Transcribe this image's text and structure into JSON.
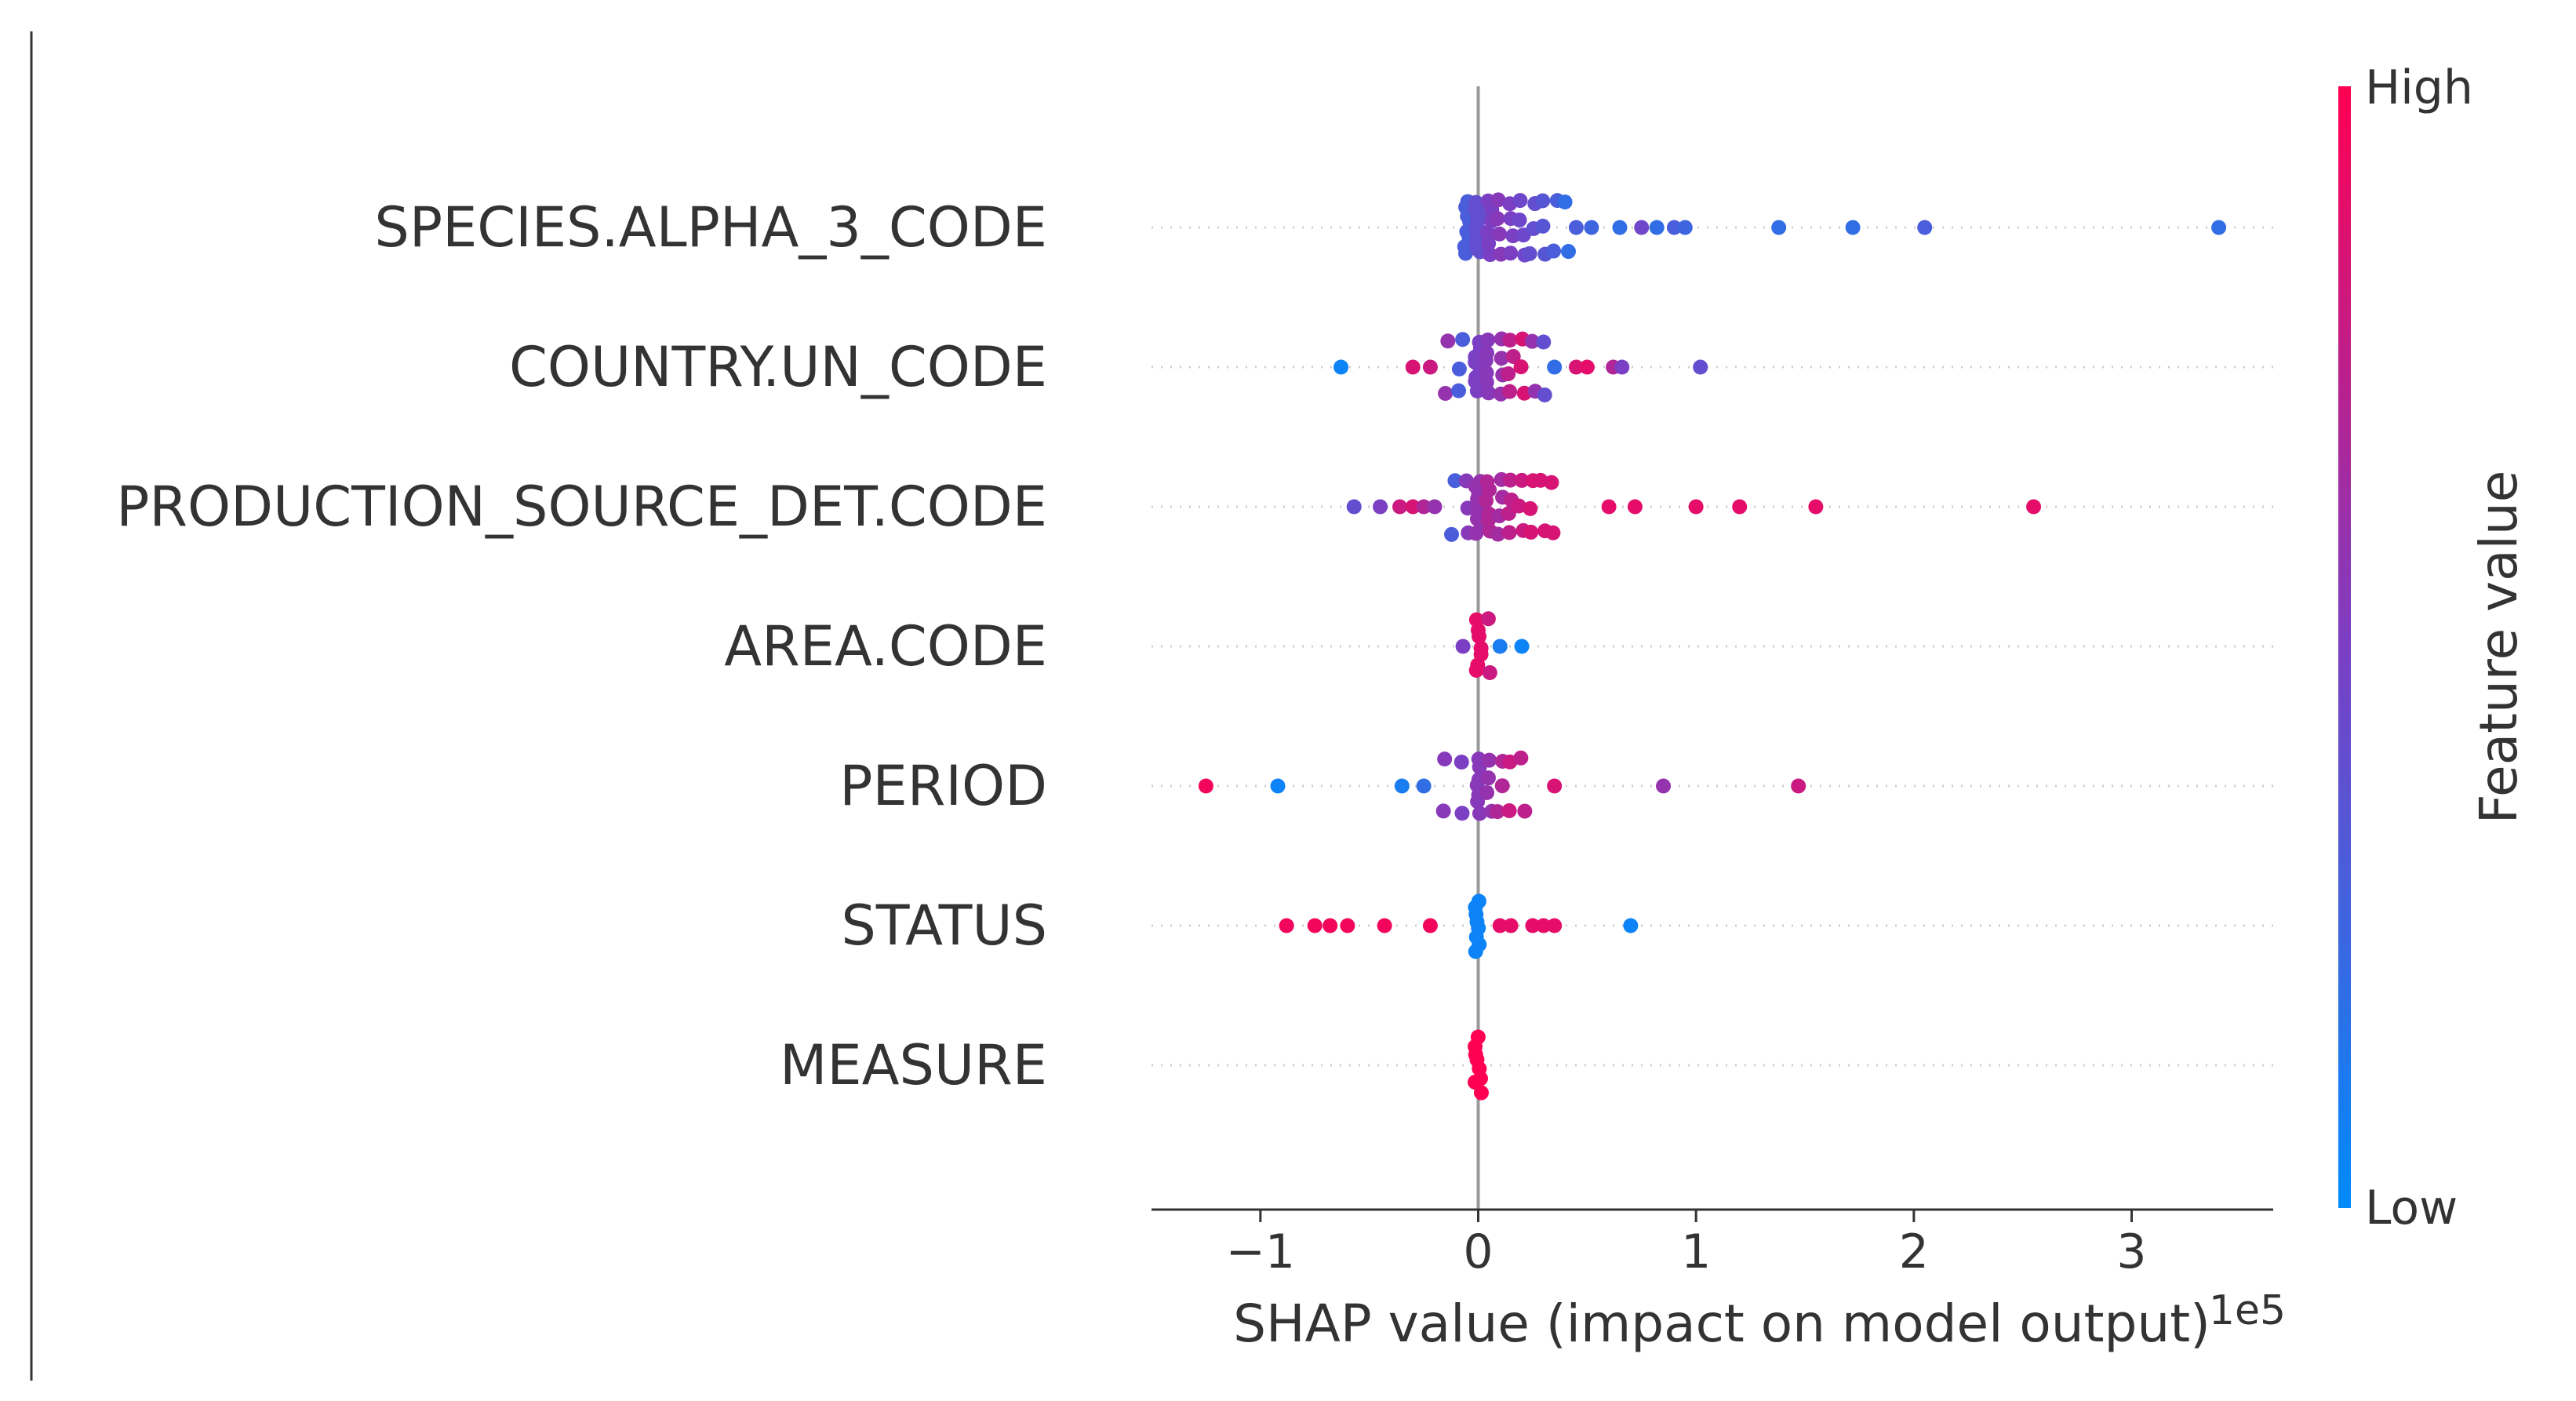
{
  "chart_data": {
    "type": "scatter",
    "subtype": "shap-beeswarm",
    "xlabel": "SHAP value (impact on model output)",
    "x_offset_label": "1e5",
    "xlim": [
      -1.5,
      3.65
    ],
    "xticks": [
      -1,
      0,
      1,
      2,
      3
    ],
    "xtick_labels": [
      "−1",
      "0",
      "1",
      "2",
      "3"
    ],
    "features": [
      "SPECIES.ALPHA_3_CODE",
      "COUNTRY.UN_CODE",
      "PRODUCTION_SOURCE_DET.CODE",
      "AREA.CODE",
      "PERIOD",
      "STATUS",
      "MEASURE"
    ],
    "colorbar": {
      "label": "Feature value",
      "high_label": "High",
      "low_label": "Low",
      "high_color": "#ff0052",
      "mid_color": "#7b3fc4",
      "low_color": "#008bfb"
    },
    "points": [
      [
        [
          -0.05,
          0.3,
          8
        ],
        [
          0.0,
          0.4,
          12
        ],
        [
          0.05,
          0.5,
          6
        ],
        [
          0.1,
          0.55,
          4
        ],
        [
          0.15,
          0.5,
          4
        ],
        [
          0.2,
          0.45,
          4
        ],
        [
          0.25,
          0.4,
          3
        ],
        [
          0.3,
          0.35,
          3
        ],
        [
          0.35,
          0.3,
          2
        ],
        [
          0.4,
          0.2,
          2
        ],
        [
          0.45,
          0.3,
          1
        ],
        [
          0.52,
          0.25,
          1
        ],
        [
          0.65,
          0.2,
          1
        ],
        [
          0.75,
          0.45,
          1
        ],
        [
          0.82,
          0.2,
          1
        ],
        [
          0.9,
          0.3,
          1
        ],
        [
          0.95,
          0.25,
          1
        ],
        [
          1.38,
          0.2,
          1
        ],
        [
          1.72,
          0.2,
          1
        ],
        [
          2.05,
          0.3,
          1
        ],
        [
          3.4,
          0.2,
          1
        ]
      ],
      [
        [
          -0.63,
          0.05,
          1
        ],
        [
          -0.3,
          0.85,
          1
        ],
        [
          -0.22,
          0.8,
          1
        ],
        [
          -0.15,
          0.6,
          2
        ],
        [
          -0.08,
          0.3,
          3
        ],
        [
          0.0,
          0.5,
          10
        ],
        [
          0.05,
          0.55,
          6
        ],
        [
          0.1,
          0.6,
          4
        ],
        [
          0.15,
          0.75,
          4
        ],
        [
          0.2,
          0.85,
          3
        ],
        [
          0.25,
          0.6,
          2
        ],
        [
          0.3,
          0.4,
          2
        ],
        [
          0.35,
          0.2,
          1
        ],
        [
          0.45,
          0.85,
          1
        ],
        [
          0.5,
          0.9,
          1
        ],
        [
          0.62,
          0.7,
          1
        ],
        [
          0.66,
          0.5,
          1
        ],
        [
          1.02,
          0.4,
          1
        ]
      ],
      [
        [
          -0.57,
          0.4,
          1
        ],
        [
          -0.45,
          0.5,
          1
        ],
        [
          -0.36,
          0.8,
          1
        ],
        [
          -0.3,
          0.85,
          1
        ],
        [
          -0.25,
          0.7,
          1
        ],
        [
          -0.2,
          0.6,
          1
        ],
        [
          -0.12,
          0.3,
          2
        ],
        [
          -0.06,
          0.55,
          3
        ],
        [
          0.0,
          0.6,
          10
        ],
        [
          0.05,
          0.7,
          6
        ],
        [
          0.1,
          0.65,
          4
        ],
        [
          0.15,
          0.75,
          4
        ],
        [
          0.2,
          0.8,
          3
        ],
        [
          0.25,
          0.85,
          3
        ],
        [
          0.3,
          0.85,
          2
        ],
        [
          0.35,
          0.85,
          2
        ],
        [
          0.6,
          0.9,
          1
        ],
        [
          0.72,
          0.9,
          1
        ],
        [
          1.0,
          0.9,
          1
        ],
        [
          1.2,
          0.9,
          1
        ],
        [
          1.55,
          0.9,
          1
        ],
        [
          2.55,
          0.9,
          1
        ]
      ],
      [
        [
          -0.07,
          0.5,
          1
        ],
        [
          0.0,
          0.9,
          7
        ],
        [
          0.04,
          0.8,
          2
        ],
        [
          0.1,
          0.1,
          1
        ],
        [
          0.2,
          0.05,
          1
        ]
      ],
      [
        [
          -1.25,
          0.95,
          1
        ],
        [
          -0.92,
          0.05,
          1
        ],
        [
          -0.35,
          0.1,
          1
        ],
        [
          -0.25,
          0.2,
          1
        ],
        [
          -0.15,
          0.55,
          2
        ],
        [
          -0.08,
          0.5,
          2
        ],
        [
          0.0,
          0.55,
          7
        ],
        [
          0.05,
          0.6,
          4
        ],
        [
          0.1,
          0.7,
          3
        ],
        [
          0.15,
          0.8,
          2
        ],
        [
          0.2,
          0.75,
          2
        ],
        [
          0.35,
          0.85,
          1
        ],
        [
          0.85,
          0.6,
          1
        ],
        [
          1.47,
          0.8,
          1
        ]
      ],
      [
        [
          -0.88,
          0.95,
          1
        ],
        [
          -0.75,
          0.95,
          1
        ],
        [
          -0.68,
          0.95,
          1
        ],
        [
          -0.6,
          0.95,
          1
        ],
        [
          -0.43,
          0.95,
          1
        ],
        [
          -0.22,
          0.95,
          1
        ],
        [
          0.0,
          0.05,
          8
        ],
        [
          0.1,
          0.9,
          1
        ],
        [
          0.15,
          0.9,
          1
        ],
        [
          0.25,
          0.9,
          1
        ],
        [
          0.3,
          0.9,
          1
        ],
        [
          0.35,
          0.9,
          1
        ],
        [
          0.7,
          0.05,
          1
        ]
      ],
      [
        [
          0.0,
          1.0,
          8
        ]
      ]
    ]
  }
}
